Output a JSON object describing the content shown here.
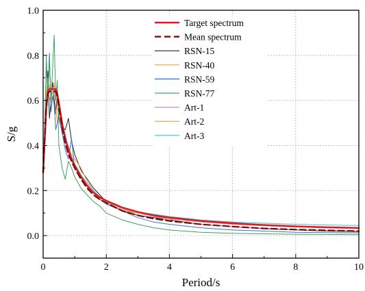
{
  "chart_data": {
    "type": "line",
    "xlabel": "Period/s",
    "ylabel": "S/g",
    "xlim": [
      0,
      10
    ],
    "ylim": [
      -0.1,
      1.0
    ],
    "xticks": [
      "0",
      "2",
      "4",
      "6",
      "8",
      "10"
    ],
    "yticks": [
      "0.0",
      "0.2",
      "0.4",
      "0.6",
      "0.8",
      "1.0"
    ],
    "grid": true,
    "legend_position": "top-right",
    "series": [
      {
        "name": "RSN-15",
        "color": "#222222",
        "width": 1.0,
        "dash": "",
        "x": [
          0,
          0.05,
          0.1,
          0.15,
          0.2,
          0.25,
          0.3,
          0.35,
          0.4,
          0.45,
          0.5,
          0.6,
          0.7,
          0.8,
          0.9,
          1.0,
          1.2,
          1.4,
          1.6,
          1.8,
          2.0,
          2.5,
          3,
          3.5,
          4,
          5,
          6,
          7,
          8,
          9,
          10
        ],
        "y": [
          0.33,
          0.45,
          0.55,
          0.73,
          0.52,
          0.6,
          0.68,
          0.6,
          0.54,
          0.62,
          0.52,
          0.48,
          0.47,
          0.52,
          0.42,
          0.36,
          0.29,
          0.25,
          0.21,
          0.18,
          0.15,
          0.11,
          0.09,
          0.08,
          0.07,
          0.05,
          0.04,
          0.03,
          0.025,
          0.02,
          0.018
        ]
      },
      {
        "name": "RSN-40",
        "color": "#f39a2c",
        "width": 1.0,
        "dash": "",
        "x": [
          0,
          0.05,
          0.1,
          0.15,
          0.2,
          0.25,
          0.3,
          0.35,
          0.4,
          0.45,
          0.5,
          0.6,
          0.7,
          0.8,
          0.9,
          1.0,
          1.2,
          1.4,
          1.6,
          1.8,
          2.0,
          2.5,
          3,
          3.5,
          4,
          4.3,
          4.6,
          5,
          6,
          7,
          8,
          9,
          10
        ],
        "y": [
          0.28,
          0.42,
          0.62,
          0.7,
          0.6,
          0.62,
          0.6,
          0.68,
          0.56,
          0.5,
          0.55,
          0.45,
          0.42,
          0.4,
          0.36,
          0.34,
          0.3,
          0.24,
          0.2,
          0.17,
          0.15,
          0.11,
          0.1,
          0.085,
          0.07,
          0.08,
          0.06,
          0.05,
          0.04,
          0.032,
          0.026,
          0.022,
          0.02
        ]
      },
      {
        "name": "RSN-59",
        "color": "#3a6fd0",
        "width": 1.0,
        "dash": "",
        "x": [
          0,
          0.05,
          0.1,
          0.15,
          0.2,
          0.25,
          0.3,
          0.35,
          0.4,
          0.45,
          0.5,
          0.6,
          0.7,
          0.8,
          0.9,
          1.0,
          1.2,
          1.4,
          1.6,
          1.8,
          2.0,
          2.5,
          3,
          3.5,
          4,
          5,
          6,
          7,
          8,
          9,
          10
        ],
        "y": [
          0.3,
          0.5,
          0.75,
          0.62,
          0.81,
          0.55,
          0.62,
          0.58,
          0.47,
          0.5,
          0.52,
          0.46,
          0.38,
          0.34,
          0.43,
          0.3,
          0.27,
          0.22,
          0.19,
          0.16,
          0.14,
          0.11,
          0.08,
          0.06,
          0.05,
          0.035,
          0.025,
          0.02,
          0.015,
          0.013,
          0.012
        ]
      },
      {
        "name": "RSN-77",
        "color": "#3aa35a",
        "width": 1.0,
        "dash": "",
        "x": [
          0,
          0.05,
          0.1,
          0.15,
          0.2,
          0.25,
          0.3,
          0.35,
          0.4,
          0.45,
          0.5,
          0.6,
          0.7,
          0.8,
          0.9,
          1.0,
          1.2,
          1.4,
          1.6,
          1.8,
          2.0,
          2.5,
          3,
          3.5,
          4,
          5,
          6,
          7,
          8,
          9,
          10
        ],
        "y": [
          0.27,
          0.4,
          0.8,
          0.62,
          0.78,
          0.6,
          0.74,
          0.89,
          0.6,
          0.69,
          0.4,
          0.3,
          0.25,
          0.33,
          0.3,
          0.26,
          0.21,
          0.18,
          0.15,
          0.13,
          0.1,
          0.07,
          0.05,
          0.035,
          0.025,
          0.015,
          0.01,
          0.008,
          0.006,
          0.005,
          0.004
        ]
      },
      {
        "name": "Art-1",
        "color": "#c58be0",
        "width": 1.0,
        "dash": "",
        "x": [
          0,
          0.05,
          0.1,
          0.15,
          0.2,
          0.25,
          0.3,
          0.35,
          0.4,
          0.45,
          0.5,
          0.6,
          0.7,
          0.8,
          0.9,
          1.0,
          1.2,
          1.4,
          1.6,
          1.8,
          2.0,
          2.5,
          3,
          3.5,
          4,
          5,
          6,
          7,
          8,
          9,
          10
        ],
        "y": [
          0.28,
          0.45,
          0.6,
          0.63,
          0.66,
          0.64,
          0.65,
          0.62,
          0.66,
          0.62,
          0.58,
          0.5,
          0.44,
          0.38,
          0.35,
          0.32,
          0.27,
          0.23,
          0.2,
          0.17,
          0.15,
          0.12,
          0.1,
          0.085,
          0.075,
          0.06,
          0.05,
          0.043,
          0.038,
          0.034,
          0.031
        ]
      },
      {
        "name": "Art-2",
        "color": "#d9a33b",
        "width": 1.0,
        "dash": "",
        "x": [
          0,
          0.05,
          0.1,
          0.15,
          0.2,
          0.25,
          0.3,
          0.35,
          0.4,
          0.45,
          0.5,
          0.6,
          0.7,
          0.8,
          0.9,
          1.0,
          1.2,
          1.4,
          1.6,
          1.8,
          2.0,
          2.5,
          3,
          3.5,
          4,
          5,
          6,
          7,
          8,
          9,
          10
        ],
        "y": [
          0.29,
          0.44,
          0.58,
          0.62,
          0.67,
          0.66,
          0.63,
          0.64,
          0.65,
          0.6,
          0.56,
          0.49,
          0.43,
          0.37,
          0.34,
          0.31,
          0.26,
          0.22,
          0.19,
          0.165,
          0.145,
          0.115,
          0.1,
          0.09,
          0.08,
          0.062,
          0.052,
          0.045,
          0.039,
          0.035,
          0.032
        ]
      },
      {
        "name": "Art-3",
        "color": "#3ec0cf",
        "width": 1.0,
        "dash": "",
        "x": [
          0,
          0.05,
          0.1,
          0.15,
          0.2,
          0.25,
          0.3,
          0.35,
          0.4,
          0.45,
          0.5,
          0.6,
          0.7,
          0.8,
          0.9,
          1.0,
          1.2,
          1.4,
          1.6,
          1.8,
          2.0,
          2.5,
          3,
          3.5,
          4,
          5,
          6,
          7,
          8,
          9,
          10
        ],
        "y": [
          0.3,
          0.46,
          0.6,
          0.64,
          0.65,
          0.63,
          0.66,
          0.63,
          0.64,
          0.61,
          0.57,
          0.5,
          0.45,
          0.39,
          0.35,
          0.32,
          0.27,
          0.23,
          0.2,
          0.17,
          0.15,
          0.125,
          0.105,
          0.095,
          0.085,
          0.07,
          0.06,
          0.055,
          0.05,
          0.047,
          0.045
        ]
      },
      {
        "name": "Target spectrum",
        "color": "#e0161f",
        "width": 2.4,
        "dash": "",
        "x": [
          0,
          0.05,
          0.1,
          0.15,
          0.2,
          0.3,
          0.4,
          0.45,
          0.5,
          0.6,
          0.7,
          0.8,
          0.9,
          1.0,
          1.2,
          1.4,
          1.6,
          1.8,
          2.0,
          2.5,
          3,
          3.5,
          4,
          5,
          6,
          7,
          8,
          9,
          10
        ],
        "y": [
          0.28,
          0.42,
          0.56,
          0.64,
          0.65,
          0.65,
          0.65,
          0.63,
          0.59,
          0.5,
          0.43,
          0.38,
          0.34,
          0.31,
          0.26,
          0.22,
          0.19,
          0.17,
          0.155,
          0.125,
          0.105,
          0.09,
          0.08,
          0.065,
          0.055,
          0.047,
          0.041,
          0.037,
          0.034
        ]
      },
      {
        "name": "Mean spectrum",
        "color": "#7a0b0b",
        "width": 2.2,
        "dash": "9,5",
        "x": [
          0,
          0.05,
          0.1,
          0.15,
          0.2,
          0.3,
          0.4,
          0.45,
          0.5,
          0.6,
          0.7,
          0.8,
          0.9,
          1.0,
          1.2,
          1.4,
          1.6,
          1.8,
          2.0,
          2.5,
          3,
          3.5,
          4,
          5,
          6,
          7,
          8,
          9,
          10
        ],
        "y": [
          0.28,
          0.43,
          0.57,
          0.63,
          0.64,
          0.64,
          0.64,
          0.62,
          0.57,
          0.48,
          0.41,
          0.36,
          0.33,
          0.3,
          0.25,
          0.21,
          0.18,
          0.16,
          0.145,
          0.11,
          0.09,
          0.075,
          0.065,
          0.05,
          0.04,
          0.032,
          0.027,
          0.023,
          0.02
        ]
      }
    ],
    "legend": [
      {
        "name": "Target spectrum",
        "color": "#e0161f",
        "dash": ""
      },
      {
        "name": "Mean spectrum",
        "color": "#7a0b0b",
        "dash": "9,5"
      },
      {
        "name": "RSN-15",
        "color": "#222222",
        "dash": ""
      },
      {
        "name": "RSN-40",
        "color": "#f39a2c",
        "dash": ""
      },
      {
        "name": "RSN-59",
        "color": "#3a6fd0",
        "dash": ""
      },
      {
        "name": "RSN-77",
        "color": "#3aa35a",
        "dash": ""
      },
      {
        "name": "Art-1",
        "color": "#c58be0",
        "dash": ""
      },
      {
        "name": "Art-2",
        "color": "#d9a33b",
        "dash": ""
      },
      {
        "name": "Art-3",
        "color": "#3ec0cf",
        "dash": ""
      }
    ]
  }
}
